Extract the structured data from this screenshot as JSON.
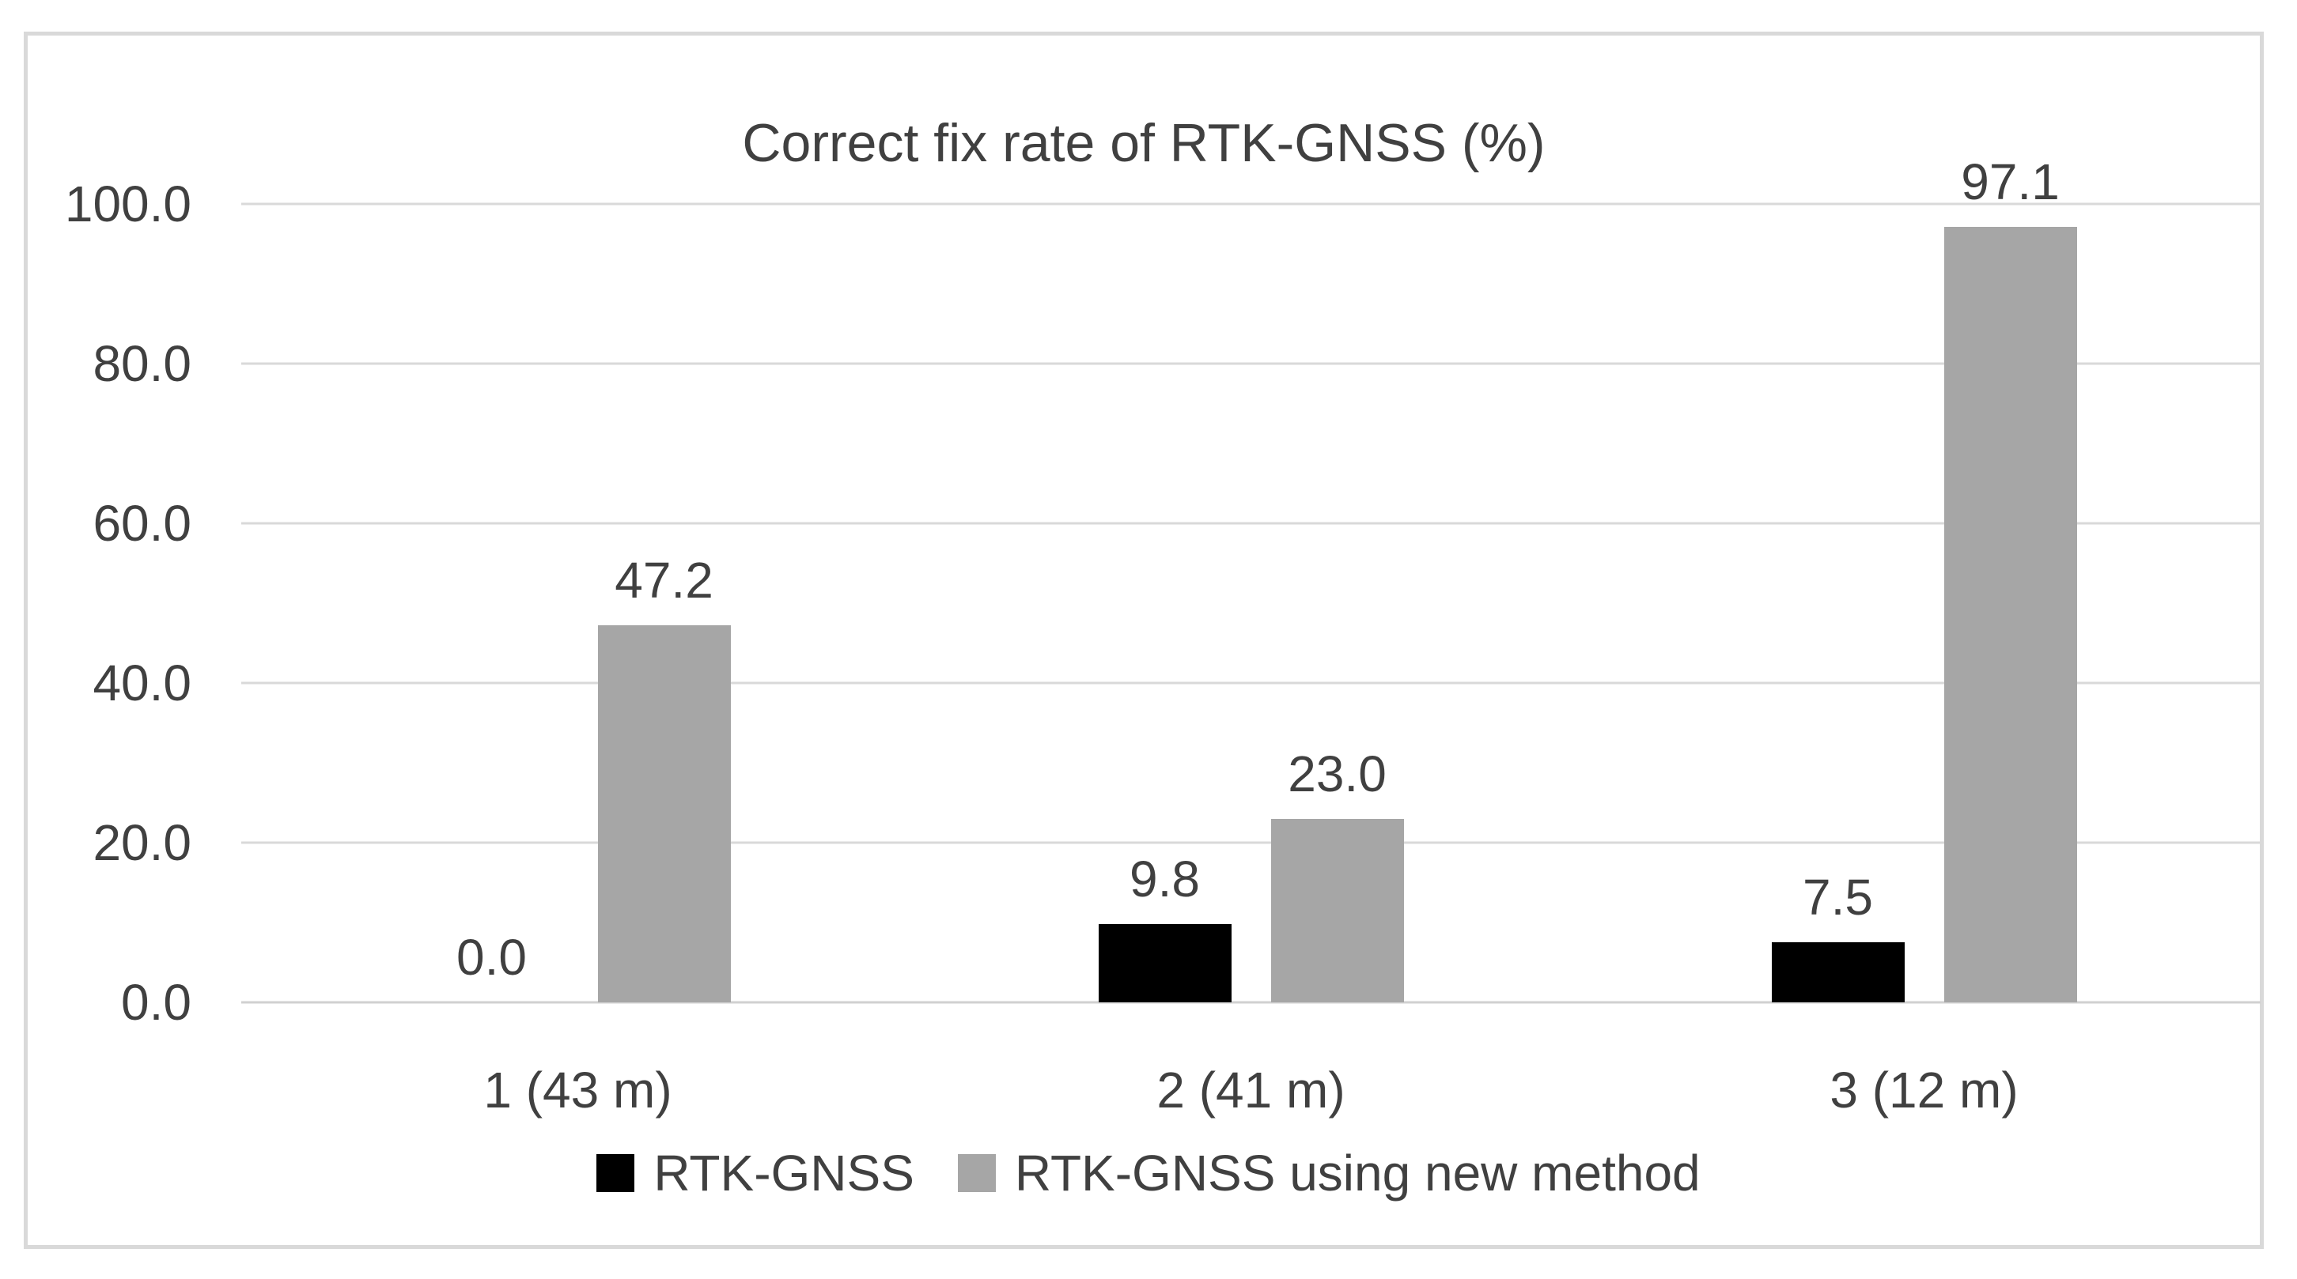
{
  "chart_data": {
    "type": "bar",
    "title": "Correct fix rate of RTK-GNSS (%)",
    "categories": [
      "1 (43 m)",
      "2 (41 m)",
      "3 (12 m)"
    ],
    "series": [
      {
        "name": "RTK-GNSS",
        "color": "#000000",
        "values": [
          0.0,
          9.8,
          7.5
        ],
        "value_labels": [
          "0.0",
          "9.8",
          "7.5"
        ]
      },
      {
        "name": "RTK-GNSS using new method",
        "color": "#a6a6a6",
        "values": [
          47.2,
          23.0,
          97.1
        ],
        "value_labels": [
          "47.2",
          "23.0",
          "97.1"
        ]
      }
    ],
    "ylim": [
      0,
      100
    ],
    "y_ticks": [
      0,
      20,
      40,
      60,
      80,
      100
    ],
    "y_tick_labels": [
      "0.0",
      "20.0",
      "40.0",
      "60.0",
      "80.0",
      "100.0"
    ],
    "grid": "horizontal-on",
    "legend_position": "bottom",
    "data_labels": "outside-end",
    "colors": {
      "background": "#ffffff",
      "frame_border": "#d9d9d9",
      "gridline": "#d9d9d9",
      "axis_line": "#d0d0d0",
      "text": "#404040"
    }
  }
}
